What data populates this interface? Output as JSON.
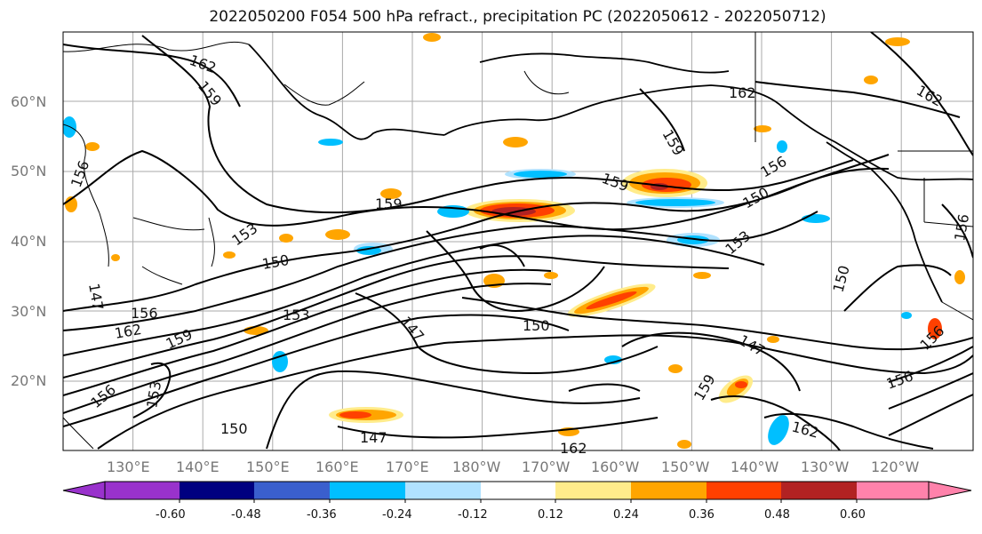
{
  "title": "2022050200 F054 500 hPa refract., precipitation PC (2022050612 - 2022050712)",
  "latitude_labels": [
    "60°N",
    "50°N",
    "40°N",
    "30°N",
    "20°N"
  ],
  "longitude_labels": [
    "130°E",
    "140°E",
    "150°E",
    "160°E",
    "170°E",
    "180°W",
    "170°W",
    "160°W",
    "150°W",
    "140°W",
    "130°W",
    "120°W"
  ],
  "contour_labels": [
    "162",
    "159",
    "156",
    "153",
    "150",
    "147",
    "156",
    "159",
    "162",
    "153",
    "147",
    "150",
    "159",
    "156",
    "153",
    "150",
    "147",
    "162",
    "159",
    "156",
    "150",
    "153",
    "147",
    "156",
    "159",
    "162",
    "162",
    "159",
    "156",
    "150",
    "156",
    "162"
  ],
  "colorbar": {
    "tick_labels": [
      "-0.60",
      "-0.48",
      "-0.36",
      "-0.24",
      "-0.12",
      "0.12",
      "0.24",
      "0.36",
      "0.48",
      "0.60"
    ],
    "colors": [
      "#9932cc",
      "#000080",
      "#3a5fcd",
      "#00bfff",
      "#b0e2ff",
      "#ffffff",
      "#ffec8b",
      "#ffa500",
      "#ff4000",
      "#b22222",
      "#ff82ab"
    ]
  },
  "map_colors": {
    "ocean": "#ffffff",
    "land_outline": "#000000",
    "grid": "#aaaaaa",
    "contour": "#000000"
  }
}
